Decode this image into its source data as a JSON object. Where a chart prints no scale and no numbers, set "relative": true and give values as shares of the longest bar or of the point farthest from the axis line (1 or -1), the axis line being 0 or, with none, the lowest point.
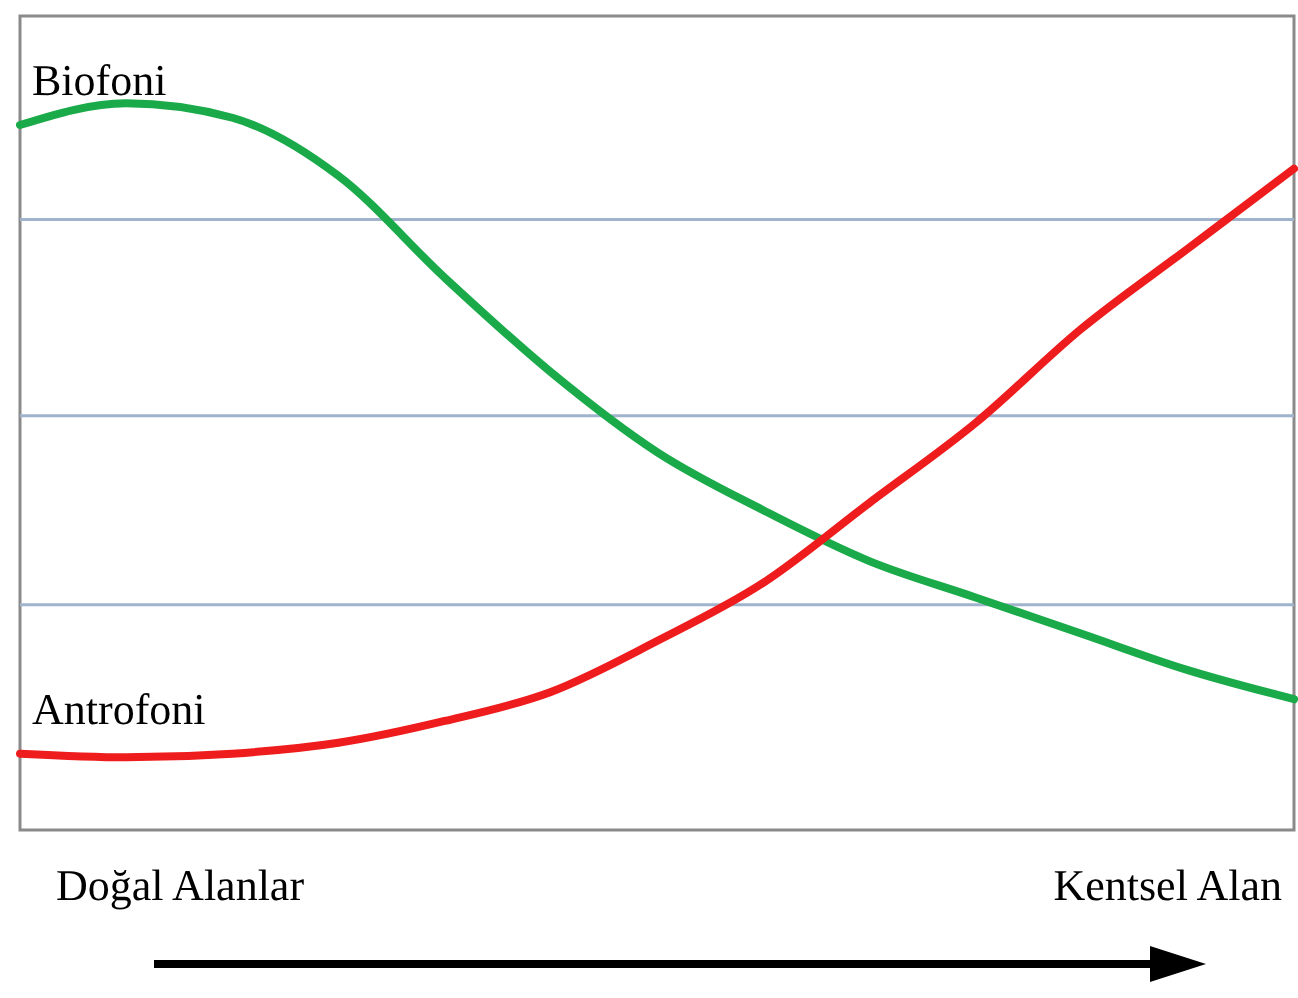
{
  "chart_data": {
    "type": "line",
    "relative": true,
    "ref_lines": [
      {
        "axis": "y",
        "value": 0.31,
        "color": "#9fb4cc"
      },
      {
        "axis": "y",
        "value": 0.57,
        "color": "#9fb4cc"
      },
      {
        "axis": "y",
        "value": 0.84,
        "color": "#9fb4cc"
      }
    ],
    "marker": "none",
    "line_style": "solid",
    "categories": [
      null,
      null,
      null,
      null,
      null,
      null,
      null,
      null,
      null,
      null,
      null,
      null,
      null
    ],
    "series": [
      {
        "name": "Biofoni",
        "color": "#1aaa4a",
        "values": [
          0.97,
          1.0,
          0.98,
          0.9,
          0.76,
          0.63,
          0.52,
          0.44,
          0.37,
          0.32,
          0.27,
          0.22,
          0.18
        ]
      },
      {
        "name": "Antrofoni",
        "color": "#ee1c1c",
        "values": [
          0.105,
          0.1,
          0.105,
          0.12,
          0.15,
          0.19,
          0.26,
          0.34,
          0.45,
          0.56,
          0.69,
          0.8,
          0.91
        ]
      }
    ],
    "annotations": [
      "Doğal Alanlar",
      "Kentsel Alan"
    ]
  }
}
